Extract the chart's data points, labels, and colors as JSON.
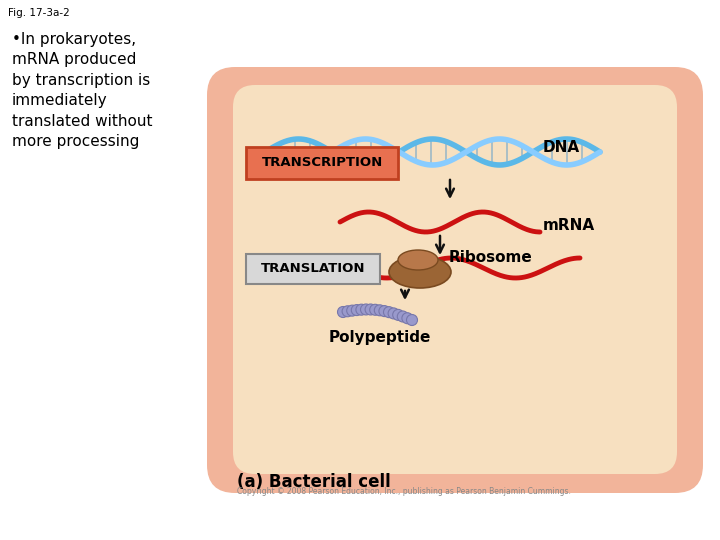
{
  "fig_title": "Fig. 17-3a-2",
  "bullet_text": "•In prokaryotes,\nmRNA produced\nby transcription is\nimmediately\ntranslated without\nmore processing",
  "caption": "(a) Bacterial cell",
  "copyright": "Copyright © 2008 Pearson Education, Inc., publishing as Pearson Benjamin Cummings.",
  "cell_outer_color": "#F2B49A",
  "cell_inner_color": "#F7E0C0",
  "transcription_label": "TRANSCRIPTION",
  "translation_label": "TRANSLATION",
  "dna_label": "DNA",
  "mrna_label": "mRNA",
  "ribosome_label": "Ribosome",
  "polypeptide_label": "Polypeptide",
  "dna_color1": "#5BB8E8",
  "dna_color2": "#88CCFF",
  "mrna_color": "#CC1111",
  "arrow_color": "#111111",
  "transcription_box_facecolor": "#E87050",
  "transcription_box_edgecolor": "#C04020",
  "translation_box_facecolor": "#D8D8D8",
  "translation_box_edgecolor": "#888888",
  "polypeptide_bead_color": "#9999CC",
  "polypeptide_bead_edge": "#7777AA"
}
